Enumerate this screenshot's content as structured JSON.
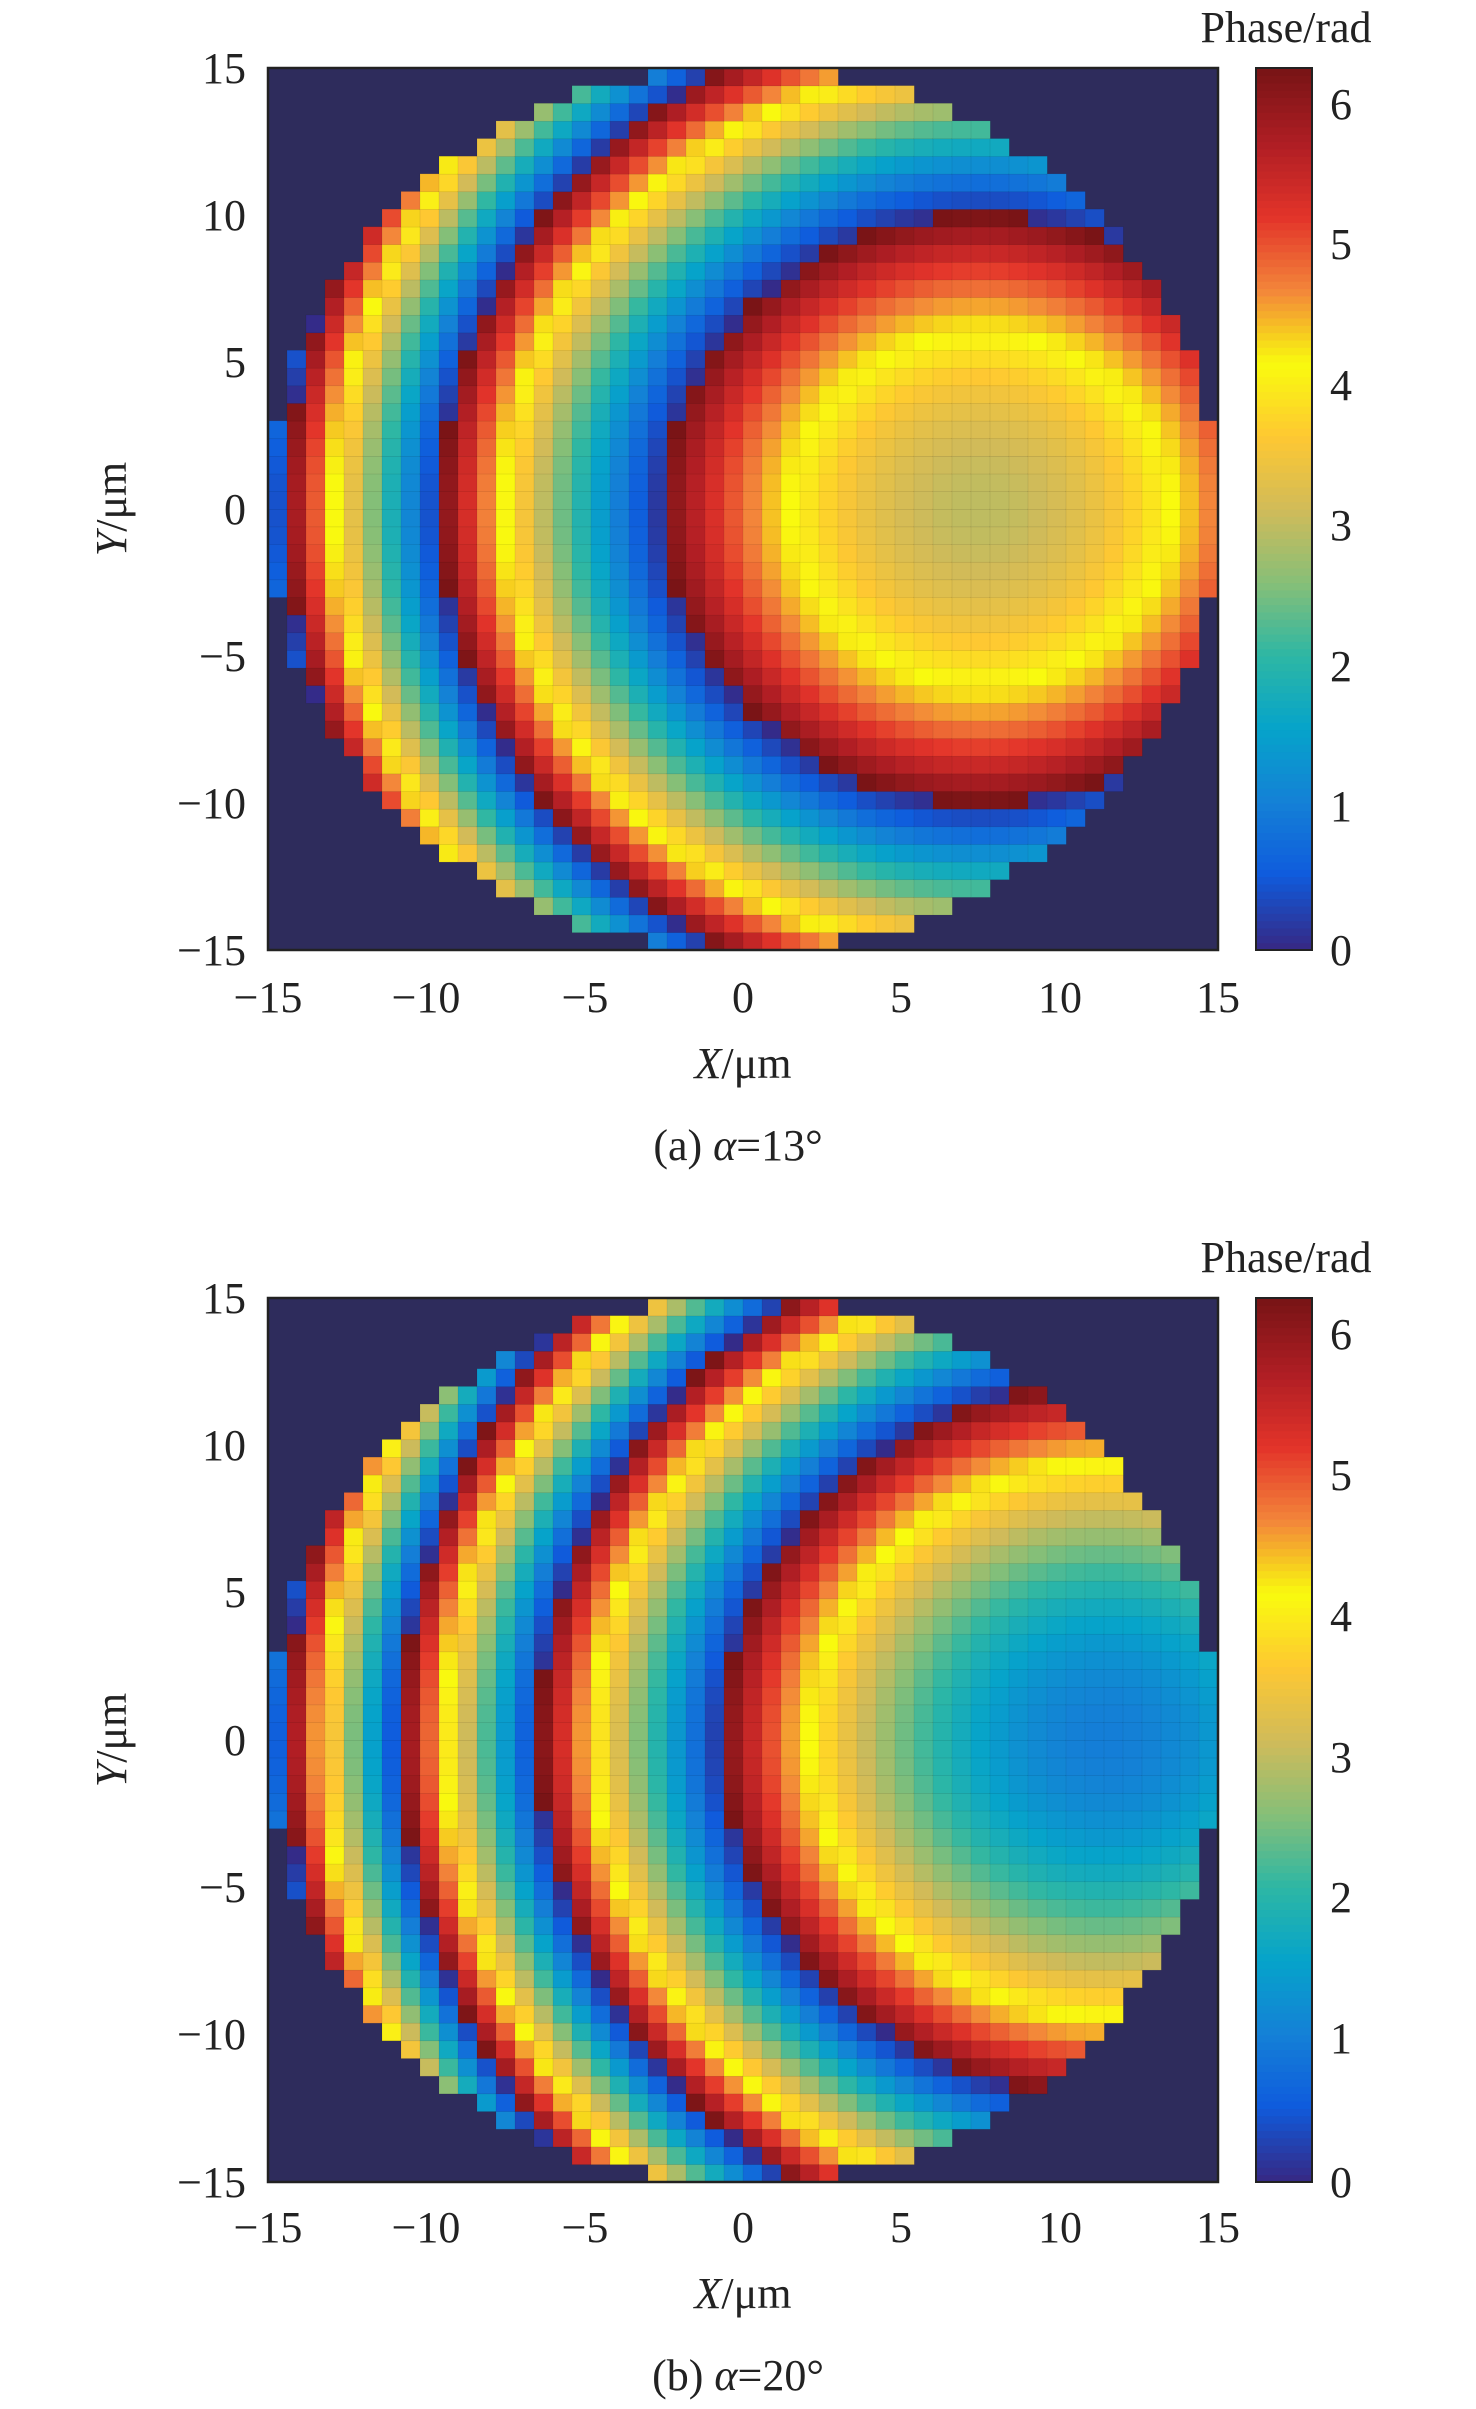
{
  "chart_data": [
    {
      "type": "heatmap",
      "caption": "(a) α=13°",
      "caption_prefix": "(a) ",
      "caption_var": "α",
      "caption_value": "=13°",
      "alpha_deg": 13,
      "xlabel_var": "X",
      "xlabel_unit": "/μm",
      "ylabel_var": "Y",
      "ylabel_unit": "/μm",
      "xlim": [
        -15,
        15
      ],
      "ylim": [
        -15,
        15
      ],
      "xticks": [
        "−15",
        "−10",
        "−5",
        "0",
        "5",
        "10",
        "15"
      ],
      "yticks": [
        "15",
        "10",
        "5",
        "0",
        "−5",
        "−10",
        "−15"
      ],
      "colorbar_title": "Phase/rad",
      "colorbar_ticks": [
        "6",
        "5",
        "4",
        "3",
        "2",
        "1",
        "0"
      ],
      "clim": [
        0,
        6.28
      ],
      "grid_step_um": 0.6,
      "aperture_radius_um": 15,
      "focus_center_um": [
        7.5,
        0
      ],
      "phase_at_focus_rad": 3.0,
      "phase_model": "phase = (phase_at_focus + k·(dx²+dy²)) mod 2π",
      "phase_curvature": 0.033
    },
    {
      "type": "heatmap",
      "caption": "(b) α=20°",
      "caption_prefix": "(b) ",
      "caption_var": "α",
      "caption_value": "=20°",
      "alpha_deg": 20,
      "xlabel_var": "X",
      "xlabel_unit": "/μm",
      "ylabel_var": "Y",
      "ylabel_unit": "/μm",
      "xlim": [
        -15,
        15
      ],
      "ylim": [
        -15,
        15
      ],
      "xticks": [
        "−15",
        "−10",
        "−5",
        "0",
        "5",
        "10",
        "15"
      ],
      "yticks": [
        "15",
        "10",
        "5",
        "0",
        "−5",
        "−10",
        "−15"
      ],
      "colorbar_title": "Phase/rad",
      "colorbar_ticks": [
        "6",
        "5",
        "4",
        "3",
        "2",
        "1",
        "0"
      ],
      "clim": [
        0,
        6.28
      ],
      "grid_step_um": 0.6,
      "aperture_radius_um": 15,
      "focus_center_um": [
        11.5,
        0
      ],
      "phase_at_focus_rad": 1.0,
      "phase_model": "phase = (phase_at_focus + k·(dx²+dy²)) mod 2π",
      "phase_curvature": 0.036
    }
  ],
  "colors": {
    "background": "#2e2c5c",
    "colormap": [
      "#352a87",
      "#0f5cdd",
      "#1481d6",
      "#06a4ca",
      "#2eb7a4",
      "#87bf77",
      "#d1bb59",
      "#fec832",
      "#f9fb0e",
      "#f3863a",
      "#e3342a",
      "#b01e24",
      "#7a1416"
    ]
  }
}
